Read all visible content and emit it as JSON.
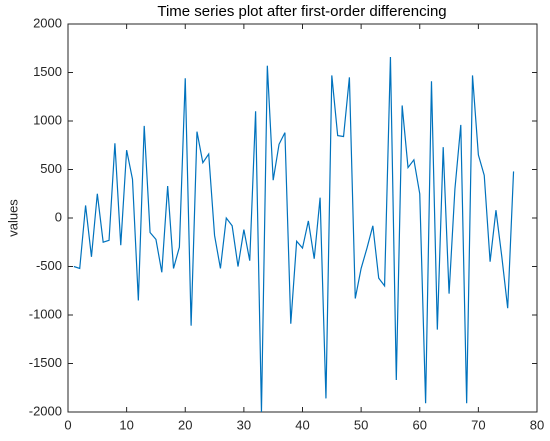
{
  "chart_data": {
    "type": "line",
    "title": "Time series plot after first-order differencing",
    "y_label": "values",
    "x": [
      1,
      2,
      3,
      4,
      5,
      6,
      7,
      8,
      9,
      10,
      11,
      12,
      13,
      14,
      15,
      16,
      17,
      18,
      19,
      20,
      21,
      22,
      23,
      24,
      25,
      26,
      27,
      28,
      29,
      30,
      31,
      32,
      33,
      34,
      35,
      36,
      37,
      38,
      39,
      40,
      41,
      42,
      43,
      44,
      45,
      46,
      47,
      48,
      49,
      50,
      51,
      52,
      53,
      54,
      55,
      56,
      57,
      58,
      59,
      60,
      61,
      62,
      63,
      64,
      65,
      66,
      67,
      68,
      69,
      70,
      71,
      72,
      73,
      74,
      75,
      76
    ],
    "series": [
      {
        "name": "values",
        "color": "#0072bd",
        "values": [
          -500,
          -520,
          130,
          -400,
          250,
          -250,
          -230,
          770,
          -280,
          700,
          400,
          -850,
          950,
          -150,
          -220,
          -560,
          330,
          -520,
          -300,
          1440,
          -1110,
          890,
          570,
          660,
          -180,
          -520,
          0,
          -80,
          -500,
          -120,
          -440,
          1100,
          -2000,
          1570,
          390,
          760,
          880,
          -1090,
          -240,
          -310,
          -30,
          -420,
          210,
          -1860,
          1470,
          850,
          840,
          1450,
          -830,
          -520,
          -310,
          -80,
          -620,
          -700,
          1660,
          -1670,
          1160,
          520,
          600,
          250,
          -1910,
          1410,
          -1150,
          730,
          -780,
          300,
          960,
          -1910,
          1470,
          650,
          440,
          -450,
          80,
          -400,
          -930,
          480
        ]
      }
    ],
    "xlim": [
      0,
      80
    ],
    "xticks": [
      0,
      10,
      20,
      30,
      40,
      50,
      60,
      70,
      80
    ],
    "ylim": [
      -2000,
      2000
    ],
    "yticks": [
      -2000,
      -1500,
      -1000,
      -500,
      0,
      500,
      1000,
      1500,
      2000
    ]
  }
}
